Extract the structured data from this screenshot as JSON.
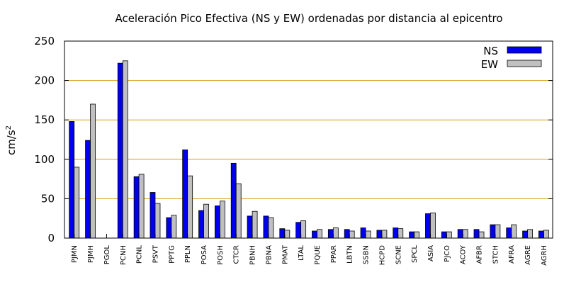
{
  "chart_data": {
    "type": "bar",
    "title": "Aceleración Pico Efectiva (NS y EW) ordenadas por distancia al epicentro",
    "xlabel": "",
    "ylabel": "cm/s",
    "ylabel_superscript": "2",
    "ylim": [
      0,
      250
    ],
    "yticks": [
      0,
      50,
      100,
      150,
      200,
      250
    ],
    "grid": "horizontal gridlines at y ticks",
    "legend_position": "top-right",
    "categories": [
      "PJMN",
      "PJMH",
      "PGOL",
      "PCNH",
      "PCNL",
      "PSVT",
      "PPTG",
      "PPLN",
      "POSA",
      "POSH",
      "CTCR",
      "PBNH",
      "PBNA",
      "PMAT",
      "LTAL",
      "PQUE",
      "PPAR",
      "LBTN",
      "SSBN",
      "HCPD",
      "SCNE",
      "SPCL",
      "ASIA",
      "PJCO",
      "ACOY",
      "AFBR",
      "STCH",
      "AFRA",
      "AGRE",
      "AGRH"
    ],
    "series": [
      {
        "name": "NS",
        "color": "#0000ee",
        "values": [
          148,
          124,
          0,
          222,
          78,
          58,
          26,
          112,
          35,
          41,
          95,
          28,
          28,
          12,
          20,
          9,
          11,
          11,
          13,
          10,
          13,
          8,
          31,
          8,
          11,
          11,
          17,
          13,
          9,
          9
        ]
      },
      {
        "name": "EW",
        "color": "#c0c0c0",
        "values": [
          90,
          170,
          0,
          225,
          81,
          44,
          29,
          79,
          43,
          47,
          69,
          34,
          26,
          10,
          22,
          11,
          13,
          9,
          9,
          10,
          12,
          8,
          32,
          8,
          11,
          8,
          17,
          17,
          11,
          10
        ]
      }
    ]
  }
}
